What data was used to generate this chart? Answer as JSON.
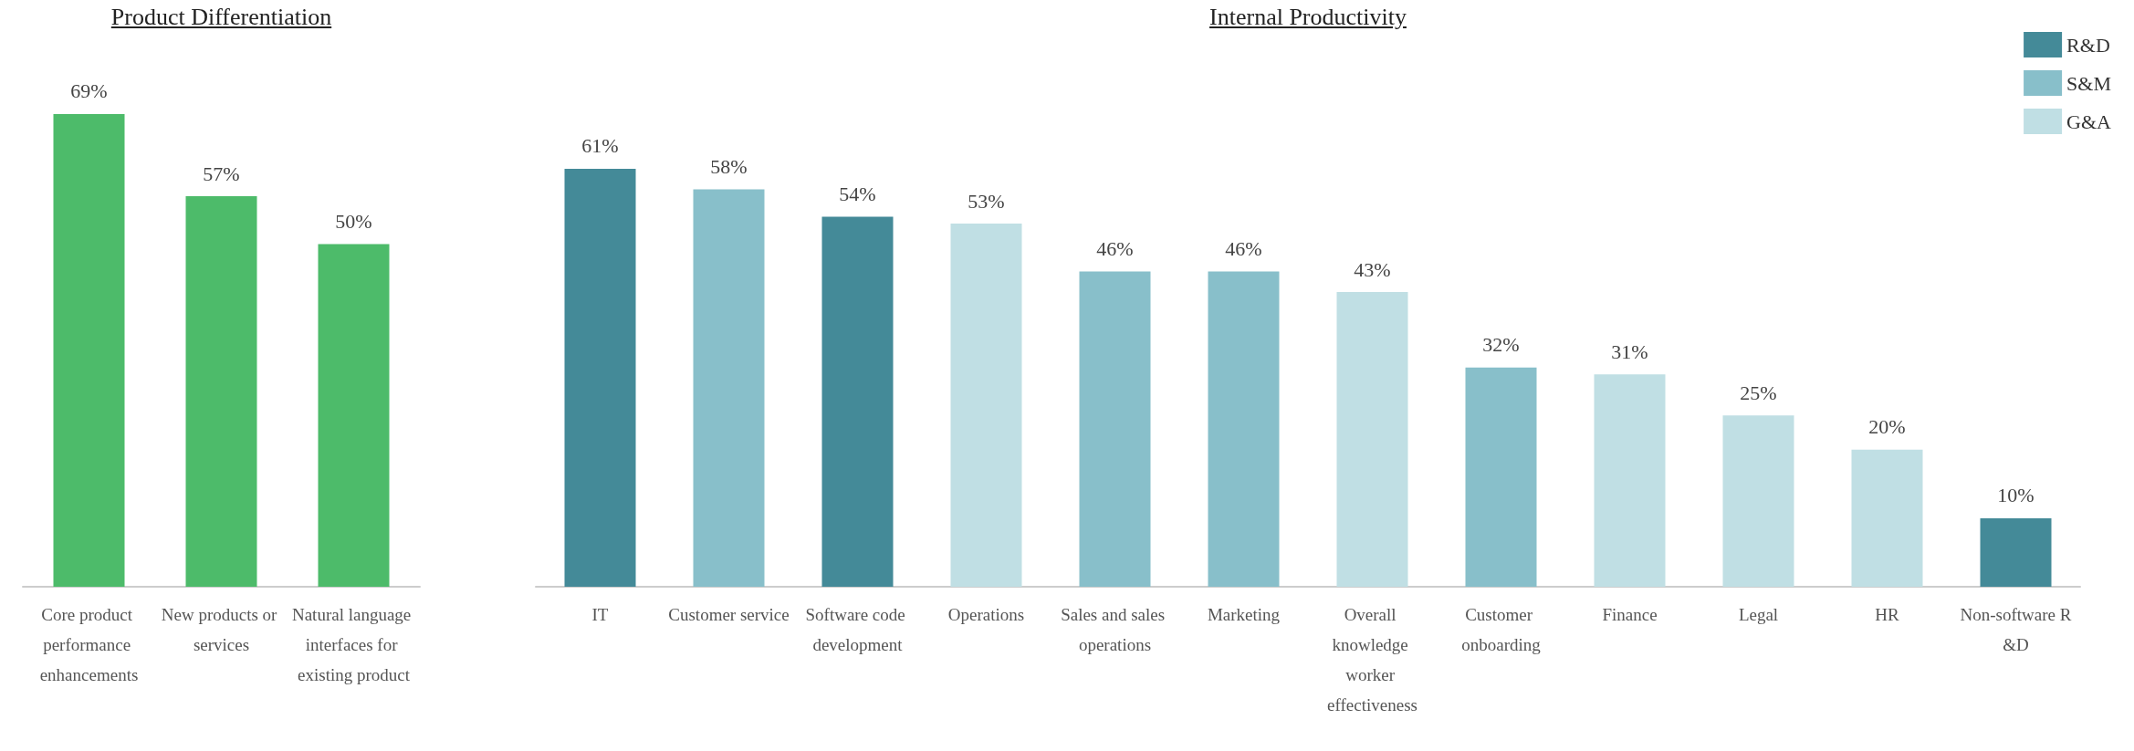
{
  "chart_data": [
    {
      "type": "bar",
      "title": "Product Differentiation",
      "categories": [
        "Core product performance enhancements",
        "New products or services",
        "Natural language interfaces for existing product"
      ],
      "series": [
        {
          "color": "#4dbb6a",
          "values": [
            69,
            57,
            50
          ],
          "value_labels": [
            "69%",
            "57%",
            "50%"
          ]
        }
      ],
      "legend": false
    },
    {
      "type": "bar",
      "title": "Internal Productivity",
      "categories": [
        "IT",
        "Customer service",
        "Software code development",
        "Operations",
        "Sales and sales operations",
        "Marketing",
        "Overall knowledge worker effectiveness",
        "Customer onboarding",
        "Finance",
        "Legal",
        "HR",
        "Non-software R&D"
      ],
      "stacked": true,
      "legend": "top right",
      "series": [
        {
          "name": "R&D",
          "color": "#448a98",
          "values": [
            61,
            null,
            54,
            null,
            null,
            null,
            null,
            null,
            null,
            null,
            null,
            10
          ],
          "value_labels": [
            "61%",
            null,
            "54%",
            null,
            null,
            null,
            null,
            null,
            null,
            null,
            null,
            "10%"
          ]
        },
        {
          "name": "S&M",
          "color": "#88bfca",
          "values": [
            null,
            58,
            null,
            null,
            46,
            46,
            null,
            32,
            null,
            null,
            null,
            null
          ],
          "value_labels": [
            null,
            "58%",
            null,
            null,
            "46%",
            "46%",
            null,
            "32%",
            null,
            null,
            null,
            null
          ]
        },
        {
          "name": "G&A",
          "color": "#c0dfe4",
          "values": [
            null,
            null,
            null,
            53,
            null,
            null,
            43,
            null,
            31,
            25,
            20,
            null
          ],
          "value_labels": [
            null,
            null,
            null,
            "53%",
            null,
            null,
            "43%",
            null,
            "31%",
            "25%",
            "20%",
            null
          ]
        }
      ]
    }
  ]
}
